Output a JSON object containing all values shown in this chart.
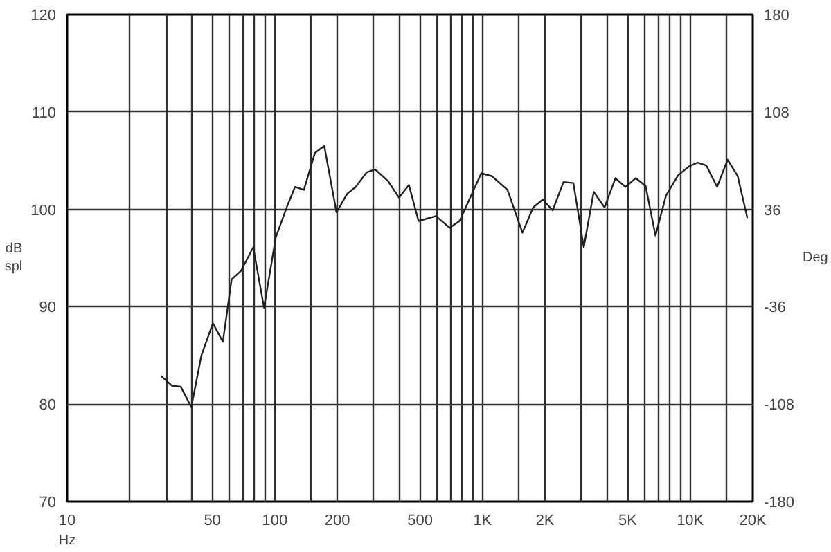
{
  "chart_data": {
    "type": "line",
    "xlabel": "Hz",
    "ylabel": "dB\nspl",
    "y2label": "Deg",
    "x": [
      28.3,
      31.9,
      35.2,
      39.6,
      44.3,
      50.3,
      56.2,
      61.9,
      68.8,
      78.7,
      88.7,
      101,
      114,
      125,
      138,
      156,
      173,
      198,
      223,
      245,
      277,
      304,
      351,
      396,
      442,
      492,
      596,
      695,
      775,
      986,
      1111,
      1318,
      1557,
      1754,
      1950,
      2176,
      2453,
      2738,
      3073,
      3430,
      3868,
      4363,
      4870,
      5465,
      6098,
      6803,
      7640,
      8746,
      9858,
      10860,
      11950,
      13470,
      15140,
      16930,
      18840
    ],
    "series": [
      {
        "color": "#202020",
        "values": [
          82.9,
          81.9,
          81.8,
          79.7,
          85.0,
          88.3,
          86.4,
          92.8,
          93.7,
          96.1,
          89.9,
          97.1,
          100.2,
          102.3,
          102.0,
          105.8,
          106.5,
          99.7,
          101.6,
          102.3,
          103.8,
          104.1,
          102.9,
          101.2,
          102.5,
          98.8,
          99.3,
          98.1,
          98.8,
          103.7,
          103.4,
          102.0,
          97.6,
          100.2,
          101.0,
          99.9,
          102.8,
          102.7,
          96.1,
          101.8,
          100.2,
          103.2,
          102.3,
          103.2,
          102.4,
          97.3,
          101.4,
          103.5,
          104.4,
          104.8,
          104.5,
          102.3,
          105.1,
          103.4,
          99.1
        ]
      }
    ],
    "log": "x",
    "grid": true,
    "marker": "none",
    "line_style": "solid",
    "xlim": [
      10,
      20000
    ],
    "xticks": [
      10,
      {
        "value": 20,
        "label": null
      },
      {
        "value": 30,
        "label": null
      },
      {
        "value": 40,
        "label": null
      },
      50,
      {
        "value": 60,
        "label": null
      },
      {
        "value": 70,
        "label": null
      },
      {
        "value": 80,
        "label": null
      },
      {
        "value": 90,
        "label": null
      },
      100,
      {
        "value": 150,
        "label": null
      },
      200,
      {
        "value": 300,
        "label": null
      },
      {
        "value": 400,
        "label": null
      },
      500,
      {
        "value": 600,
        "label": null
      },
      {
        "value": 700,
        "label": null
      },
      {
        "value": 800,
        "label": null
      },
      {
        "value": 900,
        "label": null
      },
      {
        "value": 1000,
        "label": "1K"
      },
      {
        "value": 1500,
        "label": null
      },
      {
        "value": 2000,
        "label": "2K"
      },
      {
        "value": 3000,
        "label": null
      },
      {
        "value": 4000,
        "label": null
      },
      {
        "value": 5000,
        "label": "5K"
      },
      {
        "value": 6000,
        "label": null
      },
      {
        "value": 7000,
        "label": null
      },
      {
        "value": 8000,
        "label": null
      },
      {
        "value": 9000,
        "label": null
      },
      {
        "value": 10000,
        "label": "10K"
      },
      {
        "value": 15000,
        "label": null
      },
      {
        "value": 20000,
        "label": "20K"
      }
    ],
    "ylim": [
      70,
      120
    ],
    "yticks": [
      70,
      80,
      90,
      100,
      110,
      120
    ],
    "y2lim": [
      -180,
      180
    ],
    "y2ticks": [
      -180,
      -108,
      -36,
      36,
      108,
      180
    ]
  }
}
